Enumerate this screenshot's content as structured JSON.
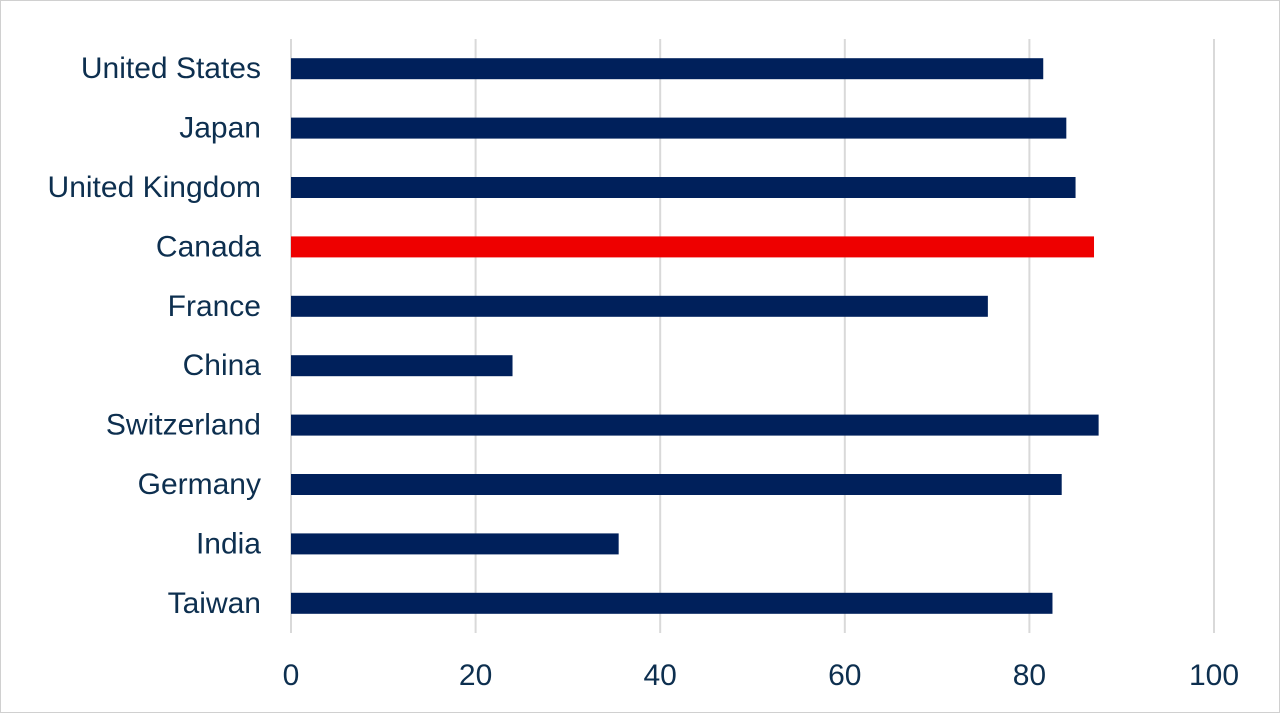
{
  "chart_data": {
    "type": "bar",
    "orientation": "horizontal",
    "categories": [
      "United States",
      "Japan",
      "United Kingdom",
      "Canada",
      "France",
      "China",
      "Switzerland",
      "Germany",
      "India",
      "Taiwan"
    ],
    "values": [
      81.5,
      84,
      85,
      87,
      75.5,
      24,
      87.5,
      83.5,
      35.5,
      82.5
    ],
    "highlight": "Canada",
    "xlim": [
      0,
      100
    ],
    "xticks": [
      0,
      20,
      40,
      60,
      80,
      100
    ],
    "xtick_labels": [
      "0",
      "20",
      "40",
      "60",
      "80",
      "100"
    ],
    "grid": "vertical",
    "legend": "none",
    "title": "",
    "xlabel": "",
    "ylabel": ""
  },
  "colors": {
    "bar": "#00205b",
    "highlight_bar": "#ee0000",
    "text": "#0d2f4f",
    "grid": "#d9d9d9"
  }
}
